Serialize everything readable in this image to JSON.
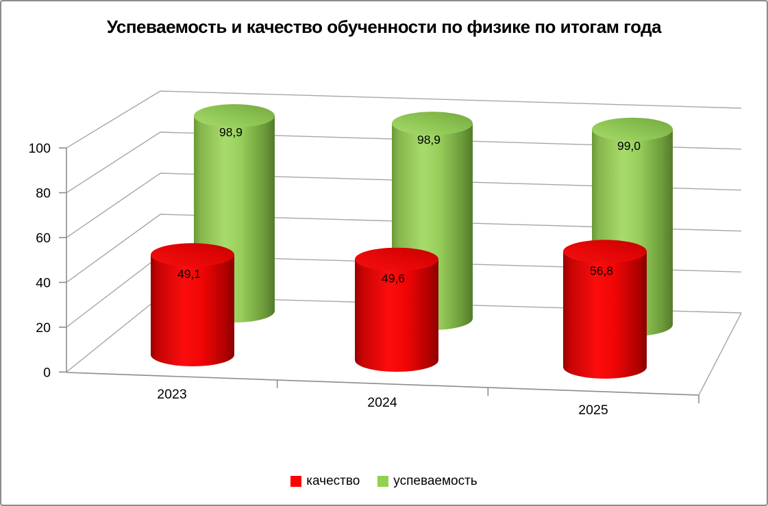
{
  "chart_data": {
    "type": "bar",
    "subtype": "3d-cylinder",
    "title": "Успеваемость и качество обученности по физике по итогам года",
    "categories": [
      "2023",
      "2024",
      "2025"
    ],
    "series": [
      {
        "name": "качество",
        "color": "#FF0000",
        "values": [
          49.1,
          49.6,
          56.8
        ],
        "labels": [
          "49,1",
          "49,6",
          "56,8"
        ]
      },
      {
        "name": "успеваемость",
        "color": "#92D050",
        "values": [
          98.9,
          98.9,
          99.0
        ],
        "labels": [
          "98,9",
          "98,9",
          "99,0"
        ]
      }
    ],
    "y_axis": {
      "min": 0,
      "max": 100,
      "ticks": [
        0,
        20,
        40,
        60,
        80,
        100
      ],
      "tick_labels": [
        "0",
        "20",
        "40",
        "60",
        "80",
        "100"
      ]
    },
    "grid": true,
    "legend_position": "bottom",
    "walls": "transparent-with-gray-gridlines"
  }
}
